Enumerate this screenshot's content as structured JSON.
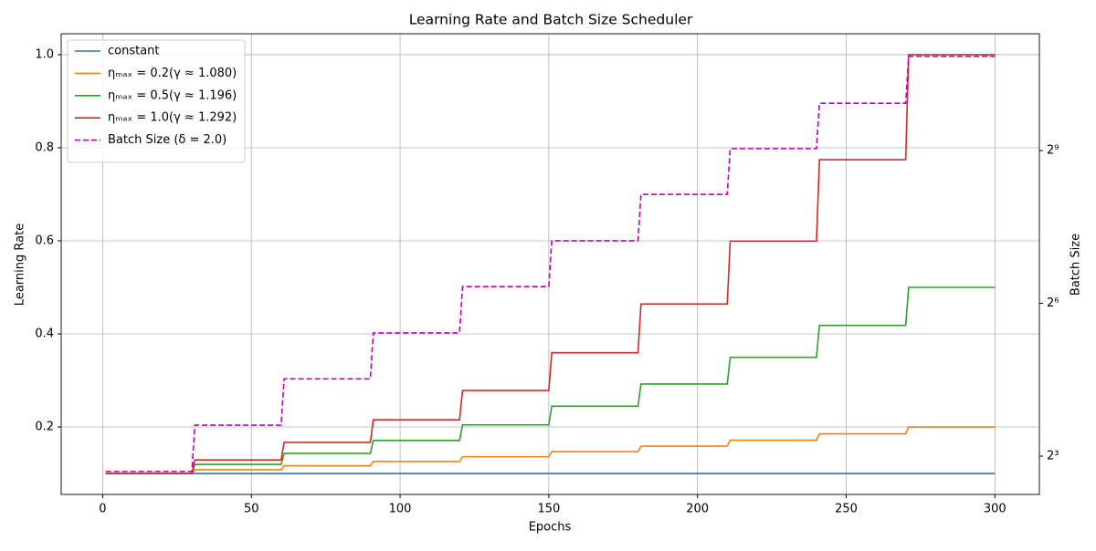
{
  "chart_data": {
    "type": "line",
    "title": "Learning Rate and Batch Size Scheduler",
    "x_label": "Epochs",
    "y_label": "Learning Rate",
    "y2_label": "Batch Size",
    "x": [
      1,
      30,
      31,
      60,
      61,
      90,
      91,
      120,
      121,
      150,
      151,
      180,
      181,
      210,
      211,
      240,
      241,
      270,
      271,
      300
    ],
    "xlim": [
      -13.95,
      314.95
    ],
    "xticks": [
      0,
      50,
      100,
      150,
      200,
      250,
      300
    ],
    "ylim": [
      0.055,
      1.045
    ],
    "yticks": [
      0.2,
      0.4,
      0.6,
      0.8,
      {
        "value": 1,
        "label": "1.0"
      }
    ],
    "y2lim": [
      4.75,
      2510
    ],
    "y2scale": "log",
    "y2base": 2,
    "y2ticks": [
      {
        "value": 8,
        "label": "2³"
      },
      {
        "value": 64,
        "label": "2⁶"
      },
      {
        "value": 512,
        "label": "2⁹"
      }
    ],
    "grid": true,
    "legend": "upper left",
    "series": [
      {
        "name": "constant",
        "color": "#1f77b4",
        "values": [
          0.1,
          0.1,
          0.1,
          0.1,
          0.1,
          0.1,
          0.1,
          0.1,
          0.1,
          0.1,
          0.1,
          0.1,
          0.1,
          0.1,
          0.1,
          0.1,
          0.1,
          0.1,
          0.1,
          0.1
        ]
      },
      {
        "name": "ηₘₐₓ = 0.2(γ ≈ 1.080)",
        "color": "#ff7f0e",
        "values": [
          0.1,
          0.1,
          0.108,
          0.108,
          0.1167,
          0.1167,
          0.126,
          0.126,
          0.1361,
          0.1361,
          0.147,
          0.147,
          0.1587,
          0.1587,
          0.1715,
          0.1715,
          0.1852,
          0.1852,
          0.2,
          0.2
        ]
      },
      {
        "name": "ηₘₐₓ = 0.5(γ ≈ 1.196)",
        "color": "#2ca02c",
        "values": [
          0.1,
          0.1,
          0.1196,
          0.1196,
          0.143,
          0.143,
          0.171,
          0.171,
          0.2045,
          0.2045,
          0.2446,
          0.2446,
          0.2924,
          0.2924,
          0.3497,
          0.3497,
          0.4182,
          0.4182,
          0.5,
          0.5
        ]
      },
      {
        "name": "ηₘₐₓ = 1.0(γ ≈ 1.292)",
        "color": "#d62728",
        "values": [
          0.1,
          0.1,
          0.1292,
          0.1292,
          0.1668,
          0.1668,
          0.2154,
          0.2154,
          0.2783,
          0.2783,
          0.3594,
          0.3594,
          0.4642,
          0.4642,
          0.5995,
          0.5995,
          0.7743,
          0.7743,
          1.0,
          1.0
        ]
      },
      {
        "name": "Batch Size (δ = 2.0)",
        "color": "#bf00bf",
        "dashed": true,
        "axis": "y2",
        "values": [
          6.5,
          6.5,
          12.2,
          12.2,
          22.9,
          22.9,
          42.8,
          42.8,
          80.4,
          80.4,
          150,
          150,
          282,
          282,
          526,
          526,
          975,
          975,
          1846,
          1846
        ]
      }
    ]
  }
}
